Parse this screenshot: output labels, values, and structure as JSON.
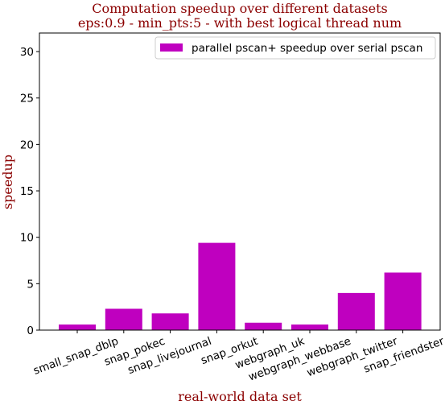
{
  "chart_data": {
    "type": "bar",
    "title_line1": "Computation speedup over different datasets",
    "title_line2": "eps:0.9 - min_pts:5 - with best logical thread num",
    "xlabel": "real-world data set",
    "ylabel": "speedup",
    "categories": [
      "small_snap_dblp",
      "snap_pokec",
      "snap_livejournal",
      "snap_orkut",
      "webgraph_uk",
      "webgraph_webbase",
      "webgraph_twitter",
      "snap_friendster"
    ],
    "series": [
      {
        "name": "parallel pscan+ speedup over serial pscan",
        "values": [
          0.6,
          2.3,
          1.8,
          9.4,
          0.8,
          0.6,
          4.0,
          6.2
        ]
      }
    ],
    "ylim": [
      0,
      32
    ],
    "yticks": [
      0,
      5,
      10,
      15,
      20,
      25,
      30
    ],
    "bar_color": "#bf00bf",
    "title_color": "#8b0000",
    "legend_position": "top-right",
    "grid": false
  }
}
